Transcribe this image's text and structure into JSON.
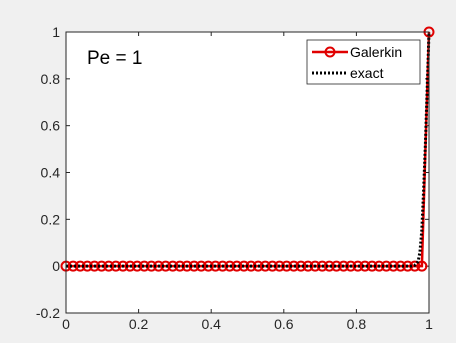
{
  "chart_data": {
    "type": "line",
    "title": "",
    "xlabel": "",
    "ylabel": "",
    "xlim": [
      0,
      1
    ],
    "ylim": [
      -0.2,
      1
    ],
    "grid": false,
    "legend_position": "top-right",
    "annotation": "Pe = 1",
    "x_ticks": [
      "0",
      "0.2",
      "0.4",
      "0.6",
      "0.8",
      "1"
    ],
    "y_ticks": [
      "-0.2",
      "0",
      "0.2",
      "0.4",
      "0.6",
      "0.8",
      "1"
    ],
    "series": [
      {
        "name": "Galerkin",
        "color": "#e00000",
        "line_style": "solid",
        "marker": "circle",
        "x": [
          0.0,
          0.0196,
          0.0392,
          0.0588,
          0.0784,
          0.098,
          0.1176,
          0.1373,
          0.1569,
          0.1765,
          0.1961,
          0.2157,
          0.2353,
          0.2549,
          0.2745,
          0.2941,
          0.3137,
          0.3333,
          0.3529,
          0.3725,
          0.3922,
          0.4118,
          0.4314,
          0.451,
          0.4706,
          0.4902,
          0.5098,
          0.5294,
          0.549,
          0.5686,
          0.5882,
          0.6078,
          0.6275,
          0.6471,
          0.6667,
          0.6863,
          0.7059,
          0.7255,
          0.7451,
          0.7647,
          0.7843,
          0.8039,
          0.8235,
          0.8431,
          0.8627,
          0.8824,
          0.902,
          0.9216,
          0.9412,
          0.9608,
          0.9804,
          1.0
        ],
        "y": [
          0,
          0,
          0,
          0,
          0,
          0,
          0,
          0,
          0,
          0,
          0,
          0,
          0,
          0,
          0,
          0,
          0,
          0,
          0,
          0,
          0,
          0,
          0,
          0,
          0,
          0,
          0,
          0,
          0,
          0,
          0,
          0,
          0,
          0,
          0,
          0,
          0,
          0,
          0,
          0,
          0,
          0,
          0,
          0,
          0,
          0,
          0,
          0,
          0,
          0,
          0,
          1
        ]
      },
      {
        "name": "exact",
        "color": "#000000",
        "line_style": "dotted",
        "marker": "none",
        "x": [
          0.0,
          0.1,
          0.2,
          0.3,
          0.4,
          0.5,
          0.6,
          0.7,
          0.8,
          0.9,
          0.95,
          0.96,
          0.965,
          0.97,
          0.975,
          0.98,
          0.985,
          0.99,
          0.995,
          1.0
        ],
        "y": [
          0,
          0,
          0,
          0,
          0,
          0,
          0,
          0,
          0,
          0,
          0,
          0.003,
          0.01,
          0.02,
          0.06,
          0.15,
          0.32,
          0.52,
          0.76,
          1.0
        ]
      }
    ]
  }
}
